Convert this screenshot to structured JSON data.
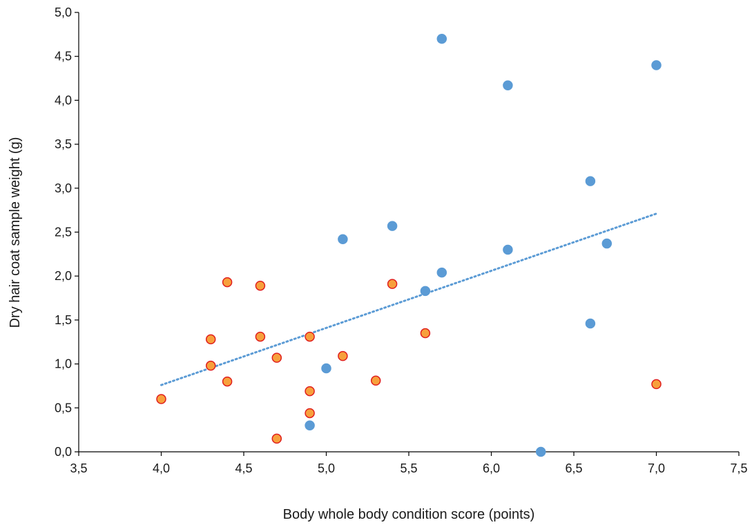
{
  "chart_data": {
    "type": "scatter",
    "title": "",
    "xlabel": "Body whole body condition score (points)",
    "ylabel": "Dry hair coat sample weight (g)",
    "xlim": [
      3.5,
      7.5
    ],
    "ylim": [
      0.0,
      5.0
    ],
    "x_ticks": [
      "3,5",
      "4,0",
      "4,5",
      "5,0",
      "5,5",
      "6,0",
      "6,5",
      "7,0",
      "7,5"
    ],
    "y_ticks": [
      "0,0",
      "0,5",
      "1,0",
      "1,5",
      "2,0",
      "2,5",
      "3,0",
      "3,5",
      "4,0",
      "4,5",
      "5,0"
    ],
    "grid": false,
    "legend": "none",
    "series": [
      {
        "color": "#5b9bd5",
        "edge_color": "#5b9bd5",
        "points": [
          {
            "x": 5.7,
            "y": 4.7
          },
          {
            "x": 7.0,
            "y": 4.4
          },
          {
            "x": 6.1,
            "y": 4.17
          },
          {
            "x": 6.6,
            "y": 3.08
          },
          {
            "x": 5.4,
            "y": 2.57
          },
          {
            "x": 5.1,
            "y": 2.42
          },
          {
            "x": 6.7,
            "y": 2.37
          },
          {
            "x": 6.1,
            "y": 2.3
          },
          {
            "x": 5.7,
            "y": 2.04
          },
          {
            "x": 5.6,
            "y": 1.83
          },
          {
            "x": 6.6,
            "y": 1.46
          },
          {
            "x": 5.0,
            "y": 0.95
          },
          {
            "x": 4.9,
            "y": 0.3
          },
          {
            "x": 6.3,
            "y": 0.0
          }
        ]
      },
      {
        "color": "#f7a03c",
        "edge_color": "#e01e1e",
        "points": [
          {
            "x": 4.4,
            "y": 1.93
          },
          {
            "x": 5.4,
            "y": 1.91
          },
          {
            "x": 4.6,
            "y": 1.89
          },
          {
            "x": 5.6,
            "y": 1.35
          },
          {
            "x": 4.6,
            "y": 1.31
          },
          {
            "x": 4.9,
            "y": 1.31
          },
          {
            "x": 4.3,
            "y": 1.28
          },
          {
            "x": 5.1,
            "y": 1.09
          },
          {
            "x": 4.7,
            "y": 1.07
          },
          {
            "x": 4.3,
            "y": 0.98
          },
          {
            "x": 5.3,
            "y": 0.81
          },
          {
            "x": 4.4,
            "y": 0.8
          },
          {
            "x": 7.0,
            "y": 0.77
          },
          {
            "x": 4.9,
            "y": 0.69
          },
          {
            "x": 4.0,
            "y": 0.6
          },
          {
            "x": 4.9,
            "y": 0.44
          },
          {
            "x": 4.7,
            "y": 0.15
          }
        ]
      }
    ],
    "trendline": {
      "style": "dotted",
      "color": "#5b9bd5",
      "x": [
        4.0,
        7.0
      ],
      "y": [
        0.76,
        2.71
      ]
    }
  }
}
